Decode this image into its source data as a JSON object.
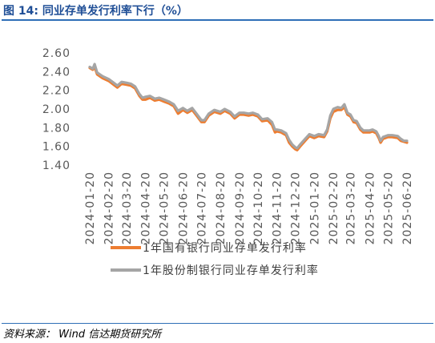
{
  "figure": {
    "title": "图 14:  同业存单发行利率下行（%）"
  },
  "source": "资料来源：  Wind  信达期货研究所",
  "colors": {
    "title": "#1f4e96",
    "rule": "#2f6fb7",
    "series_state": "#ed7d31",
    "series_joint": "#a5a5a5"
  },
  "chart_data": {
    "type": "line",
    "title": "",
    "xlabel": "",
    "ylabel": "",
    "ylim": [
      1.4,
      2.6
    ],
    "y_ticks": [
      "2.60",
      "2.40",
      "2.20",
      "2.00",
      "1.80",
      "1.60",
      "1.40"
    ],
    "x_ticks": [
      "2024-01-20",
      "2024-02-20",
      "2024-03-20",
      "2024-04-20",
      "2024-05-20",
      "2024-06-20",
      "2024-07-20",
      "2024-08-20",
      "2024-09-20",
      "2024-10-20",
      "2024-11-20",
      "2024-12-20",
      "2025-01-20",
      "2025-02-20",
      "2025-03-20",
      "2025-04-20",
      "2025-05-20",
      "2025-06-20"
    ],
    "x_range": [
      "2024-01-20",
      "2025-06-20"
    ],
    "legend_position": "bottom",
    "grid": false,
    "series": [
      {
        "name": "1年国有银行同业存单发行利率",
        "color": "#ed7d31",
        "points": [
          [
            "2024-01-20",
            2.44
          ],
          [
            "2024-01-25",
            2.42
          ],
          [
            "2024-01-28",
            2.45
          ],
          [
            "2024-02-01",
            2.37
          ],
          [
            "2024-02-10",
            2.33
          ],
          [
            "2024-02-20",
            2.3
          ],
          [
            "2024-02-28",
            2.26
          ],
          [
            "2024-03-05",
            2.23
          ],
          [
            "2024-03-12",
            2.27
          ],
          [
            "2024-03-20",
            2.26
          ],
          [
            "2024-03-27",
            2.25
          ],
          [
            "2024-04-03",
            2.22
          ],
          [
            "2024-04-10",
            2.14
          ],
          [
            "2024-04-15",
            2.1
          ],
          [
            "2024-04-20",
            2.1
          ],
          [
            "2024-04-27",
            2.12
          ],
          [
            "2024-05-05",
            2.09
          ],
          [
            "2024-05-12",
            2.1
          ],
          [
            "2024-05-20",
            2.08
          ],
          [
            "2024-05-28",
            2.06
          ],
          [
            "2024-06-05",
            2.03
          ],
          [
            "2024-06-12",
            1.95
          ],
          [
            "2024-06-20",
            1.99
          ],
          [
            "2024-06-27",
            1.96
          ],
          [
            "2024-07-05",
            1.99
          ],
          [
            "2024-07-12",
            1.93
          ],
          [
            "2024-07-20",
            1.86
          ],
          [
            "2024-07-25",
            1.86
          ],
          [
            "2024-08-01",
            1.93
          ],
          [
            "2024-08-10",
            1.97
          ],
          [
            "2024-08-20",
            1.95
          ],
          [
            "2024-08-27",
            1.98
          ],
          [
            "2024-09-05",
            1.95
          ],
          [
            "2024-09-12",
            1.9
          ],
          [
            "2024-09-20",
            1.94
          ],
          [
            "2024-09-27",
            1.94
          ],
          [
            "2024-10-05",
            1.93
          ],
          [
            "2024-10-12",
            1.94
          ],
          [
            "2024-10-20",
            1.92
          ],
          [
            "2024-10-27",
            1.87
          ],
          [
            "2024-11-05",
            1.88
          ],
          [
            "2024-11-12",
            1.83
          ],
          [
            "2024-11-17",
            1.75
          ],
          [
            "2024-11-20",
            1.76
          ],
          [
            "2024-11-27",
            1.75
          ],
          [
            "2024-12-05",
            1.72
          ],
          [
            "2024-12-10",
            1.64
          ],
          [
            "2024-12-15",
            1.6
          ],
          [
            "2024-12-20",
            1.57
          ],
          [
            "2024-12-23",
            1.56
          ],
          [
            "2024-12-28",
            1.6
          ],
          [
            "2025-01-05",
            1.66
          ],
          [
            "2025-01-12",
            1.71
          ],
          [
            "2025-01-20",
            1.69
          ],
          [
            "2025-01-27",
            1.71
          ],
          [
            "2025-02-05",
            1.7
          ],
          [
            "2025-02-10",
            1.76
          ],
          [
            "2025-02-15",
            1.9
          ],
          [
            "2025-02-20",
            1.97
          ],
          [
            "2025-02-27",
            1.99
          ],
          [
            "2025-03-05",
            1.99
          ],
          [
            "2025-03-10",
            2.02
          ],
          [
            "2025-03-15",
            1.94
          ],
          [
            "2025-03-20",
            1.92
          ],
          [
            "2025-03-25",
            1.86
          ],
          [
            "2025-03-30",
            1.85
          ],
          [
            "2025-04-05",
            1.78
          ],
          [
            "2025-04-10",
            1.75
          ],
          [
            "2025-04-20",
            1.75
          ],
          [
            "2025-04-25",
            1.76
          ],
          [
            "2025-05-01",
            1.74
          ],
          [
            "2025-05-05",
            1.69
          ],
          [
            "2025-05-08",
            1.64
          ],
          [
            "2025-05-12",
            1.68
          ],
          [
            "2025-05-20",
            1.7
          ],
          [
            "2025-05-27",
            1.7
          ],
          [
            "2025-06-05",
            1.69
          ],
          [
            "2025-06-10",
            1.66
          ],
          [
            "2025-06-15",
            1.65
          ],
          [
            "2025-06-20",
            1.64
          ]
        ]
      },
      {
        "name": "1年股份制银行同业存单发行利率",
        "color": "#a5a5a5",
        "points": [
          [
            "2024-01-20",
            2.45
          ],
          [
            "2024-01-25",
            2.43
          ],
          [
            "2024-01-28",
            2.48
          ],
          [
            "2024-02-01",
            2.39
          ],
          [
            "2024-02-10",
            2.35
          ],
          [
            "2024-02-20",
            2.32
          ],
          [
            "2024-02-28",
            2.28
          ],
          [
            "2024-03-05",
            2.25
          ],
          [
            "2024-03-12",
            2.29
          ],
          [
            "2024-03-20",
            2.28
          ],
          [
            "2024-03-27",
            2.27
          ],
          [
            "2024-04-03",
            2.24
          ],
          [
            "2024-04-10",
            2.16
          ],
          [
            "2024-04-15",
            2.12
          ],
          [
            "2024-04-20",
            2.13
          ],
          [
            "2024-04-27",
            2.14
          ],
          [
            "2024-05-05",
            2.11
          ],
          [
            "2024-05-12",
            2.12
          ],
          [
            "2024-05-20",
            2.1
          ],
          [
            "2024-05-28",
            2.08
          ],
          [
            "2024-06-05",
            2.05
          ],
          [
            "2024-06-12",
            1.98
          ],
          [
            "2024-06-20",
            2.01
          ],
          [
            "2024-06-27",
            1.98
          ],
          [
            "2024-07-05",
            2.01
          ],
          [
            "2024-07-12",
            1.95
          ],
          [
            "2024-07-20",
            1.88
          ],
          [
            "2024-07-25",
            1.88
          ],
          [
            "2024-08-01",
            1.95
          ],
          [
            "2024-08-10",
            1.99
          ],
          [
            "2024-08-20",
            1.97
          ],
          [
            "2024-08-27",
            2.0
          ],
          [
            "2024-09-05",
            1.97
          ],
          [
            "2024-09-12",
            1.92
          ],
          [
            "2024-09-20",
            1.96
          ],
          [
            "2024-09-27",
            1.96
          ],
          [
            "2024-10-05",
            1.95
          ],
          [
            "2024-10-12",
            1.96
          ],
          [
            "2024-10-20",
            1.94
          ],
          [
            "2024-10-27",
            1.89
          ],
          [
            "2024-11-05",
            1.9
          ],
          [
            "2024-11-12",
            1.86
          ],
          [
            "2024-11-17",
            1.78
          ],
          [
            "2024-11-20",
            1.78
          ],
          [
            "2024-11-27",
            1.77
          ],
          [
            "2024-12-05",
            1.74
          ],
          [
            "2024-12-10",
            1.67
          ],
          [
            "2024-12-15",
            1.62
          ],
          [
            "2024-12-20",
            1.59
          ],
          [
            "2024-12-23",
            1.58
          ],
          [
            "2024-12-28",
            1.62
          ],
          [
            "2025-01-05",
            1.68
          ],
          [
            "2025-01-12",
            1.73
          ],
          [
            "2025-01-20",
            1.71
          ],
          [
            "2025-01-27",
            1.73
          ],
          [
            "2025-02-05",
            1.72
          ],
          [
            "2025-02-10",
            1.78
          ],
          [
            "2025-02-15",
            1.93
          ],
          [
            "2025-02-20",
            2.0
          ],
          [
            "2025-02-27",
            2.02
          ],
          [
            "2025-03-05",
            2.01
          ],
          [
            "2025-03-10",
            2.05
          ],
          [
            "2025-03-15",
            1.96
          ],
          [
            "2025-03-20",
            1.94
          ],
          [
            "2025-03-25",
            1.88
          ],
          [
            "2025-03-30",
            1.87
          ],
          [
            "2025-04-05",
            1.8
          ],
          [
            "2025-04-10",
            1.77
          ],
          [
            "2025-04-20",
            1.77
          ],
          [
            "2025-04-25",
            1.78
          ],
          [
            "2025-05-01",
            1.76
          ],
          [
            "2025-05-05",
            1.71
          ],
          [
            "2025-05-08",
            1.66
          ],
          [
            "2025-05-12",
            1.7
          ],
          [
            "2025-05-20",
            1.72
          ],
          [
            "2025-05-27",
            1.72
          ],
          [
            "2025-06-05",
            1.71
          ],
          [
            "2025-06-10",
            1.68
          ],
          [
            "2025-06-15",
            1.66
          ],
          [
            "2025-06-20",
            1.66
          ]
        ]
      }
    ]
  }
}
